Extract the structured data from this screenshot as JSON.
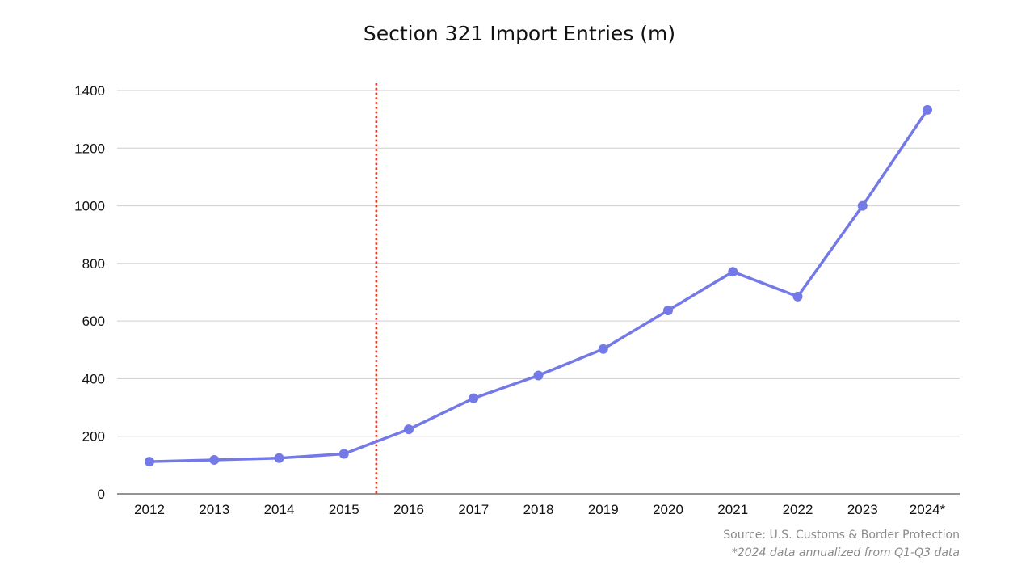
{
  "chart_data": {
    "type": "line",
    "title": "Section 321 Import Entries (m)",
    "xlabel": "",
    "ylabel": "",
    "categories": [
      "2012",
      "2013",
      "2014",
      "2015",
      "2016",
      "2017",
      "2018",
      "2019",
      "2020",
      "2021",
      "2022",
      "2023",
      "2024*"
    ],
    "series": [
      {
        "values": [
          112,
          118,
          124,
          139,
          224,
          332,
          411,
          503,
          637,
          771,
          685,
          1000,
          1333
        ]
      }
    ],
    "ylim": [
      0,
      1400
    ],
    "yticks": [
      0,
      200,
      400,
      600,
      800,
      1000,
      1200,
      1400
    ],
    "grid": true,
    "legend": "none",
    "marker_line": {
      "between": [
        "2015",
        "2016"
      ],
      "style": "dotted"
    }
  },
  "colors": {
    "series": "#7479e8",
    "marker_line": "#e3371e",
    "grid": "#cfcfcf",
    "axis": "#555555"
  },
  "footer": {
    "source": "Source: U.S. Customs & Border Protection",
    "note": "*2024 data annualized from Q1-Q3 data"
  }
}
